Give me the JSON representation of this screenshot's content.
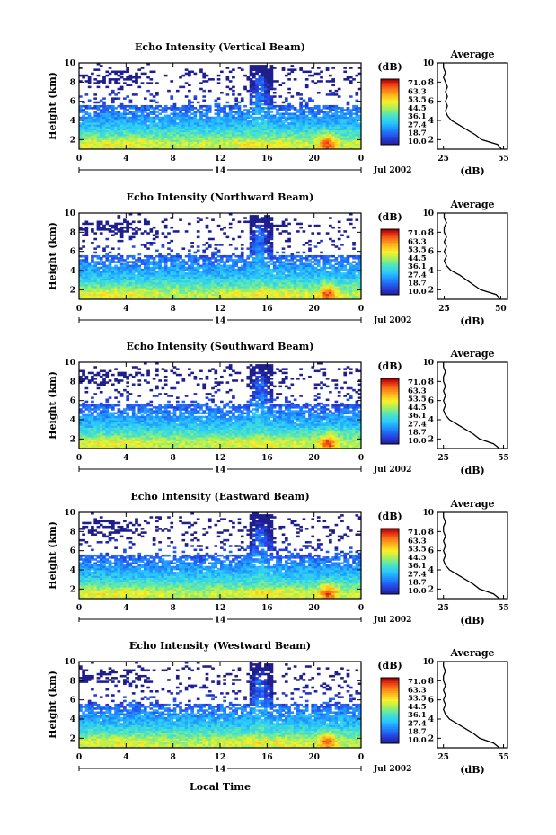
{
  "figure": {
    "xlabel_bottom": "Local Time",
    "date_label": "Jul 2002",
    "date_tick_label": "14"
  },
  "chart_data": [
    {
      "type": "heatmap",
      "title": "Echo Intensity (Vertical Beam)",
      "xlabel": "",
      "ylabel": "Height (km)",
      "x_ticks": [
        "0",
        "4",
        "8",
        "12",
        "16",
        "20",
        "0"
      ],
      "y_ticks": [
        "2",
        "4",
        "6",
        "8",
        "10"
      ],
      "xlim": [
        0,
        24
      ],
      "ylim": [
        1,
        10
      ],
      "colorbar": {
        "unit": "(dB)",
        "ticks": [
          "71.0",
          "63.3",
          "53.5",
          "44.5",
          "36.1",
          "27.4",
          "18.7",
          "10.0"
        ],
        "range": [
          10,
          71
        ]
      },
      "average_profile": {
        "title": "Average",
        "xlabel": "(dB)",
        "x_ticks": [
          "25",
          "55"
        ],
        "xlim": [
          22,
          57
        ],
        "y_ticks": [
          "2",
          "4",
          "6",
          "8",
          "10"
        ],
        "heights": [
          1.0,
          1.5,
          2.0,
          2.5,
          3.0,
          3.5,
          4.0,
          4.5,
          5.0,
          5.5,
          6.0,
          6.5,
          7.0,
          7.5,
          8.0,
          8.5,
          9.0,
          9.5,
          10.0
        ],
        "values": [
          54,
          52,
          44,
          41,
          37,
          33,
          29,
          27,
          26,
          27,
          26,
          27,
          26,
          27,
          26,
          25,
          26,
          25,
          25
        ]
      }
    },
    {
      "type": "heatmap",
      "title": "Echo Intensity (Northward Beam)",
      "xlabel": "",
      "ylabel": "Height (km)",
      "x_ticks": [
        "0",
        "4",
        "8",
        "12",
        "16",
        "20",
        "0"
      ],
      "y_ticks": [
        "2",
        "4",
        "6",
        "8",
        "10"
      ],
      "xlim": [
        0,
        24
      ],
      "ylim": [
        1,
        10
      ],
      "colorbar": {
        "unit": "(dB)",
        "ticks": [
          "71.0",
          "63.3",
          "53.5",
          "44.5",
          "36.1",
          "27.4",
          "18.7",
          "10.0"
        ],
        "range": [
          10,
          71
        ]
      },
      "average_profile": {
        "title": "Average",
        "xlabel": "(dB)",
        "x_ticks": [
          "25",
          "50"
        ],
        "xlim": [
          22,
          53
        ],
        "y_ticks": [
          "2",
          "4",
          "6",
          "8",
          "10"
        ],
        "heights": [
          1.0,
          1.5,
          2.0,
          2.5,
          3.0,
          3.5,
          4.0,
          4.5,
          5.0,
          5.5,
          6.0,
          6.5,
          7.0,
          7.5,
          8.0,
          8.5,
          9.0,
          9.5,
          10.0
        ],
        "values": [
          50,
          48,
          41,
          38,
          35,
          32,
          28,
          26,
          25,
          26,
          25,
          26,
          25,
          26,
          25,
          25,
          26,
          25,
          25
        ]
      }
    },
    {
      "type": "heatmap",
      "title": "Echo Intensity (Southward Beam)",
      "xlabel": "",
      "ylabel": "Height (km)",
      "x_ticks": [
        "0",
        "4",
        "8",
        "12",
        "16",
        "20",
        "0"
      ],
      "y_ticks": [
        "2",
        "4",
        "6",
        "8",
        "10"
      ],
      "xlim": [
        0,
        24
      ],
      "ylim": [
        1,
        10
      ],
      "colorbar": {
        "unit": "(dB)",
        "ticks": [
          "71.0",
          "63.3",
          "53.5",
          "44.5",
          "36.1",
          "27.4",
          "18.7",
          "10.0"
        ],
        "range": [
          10,
          71
        ]
      },
      "average_profile": {
        "title": "Average",
        "xlabel": "(dB)",
        "x_ticks": [
          "25",
          "55"
        ],
        "xlim": [
          22,
          57
        ],
        "y_ticks": [
          "2",
          "4",
          "6",
          "8",
          "10"
        ],
        "heights": [
          1.0,
          1.5,
          2.0,
          2.5,
          3.0,
          3.5,
          4.0,
          4.5,
          5.0,
          5.5,
          6.0,
          6.5,
          7.0,
          7.5,
          8.0,
          8.5,
          9.0,
          9.5,
          10.0
        ],
        "values": [
          53,
          50,
          43,
          40,
          36,
          32,
          28,
          26,
          25,
          26,
          25,
          26,
          25,
          26,
          25,
          25,
          26,
          25,
          25
        ]
      }
    },
    {
      "type": "heatmap",
      "title": "Echo Intensity (Eastward Beam)",
      "xlabel": "",
      "ylabel": "Height (km)",
      "x_ticks": [
        "0",
        "4",
        "8",
        "12",
        "16",
        "20",
        "0"
      ],
      "y_ticks": [
        "2",
        "4",
        "6",
        "8",
        "10"
      ],
      "xlim": [
        0,
        24
      ],
      "ylim": [
        1,
        10
      ],
      "colorbar": {
        "unit": "(dB)",
        "ticks": [
          "71.0",
          "63.3",
          "53.5",
          "44.5",
          "36.1",
          "27.4",
          "18.7",
          "10.0"
        ],
        "range": [
          10,
          71
        ]
      },
      "average_profile": {
        "title": "Average",
        "xlabel": "(dB)",
        "x_ticks": [
          "25",
          "55"
        ],
        "xlim": [
          22,
          57
        ],
        "y_ticks": [
          "2",
          "4",
          "6",
          "8",
          "10"
        ],
        "heights": [
          1.0,
          1.5,
          2.0,
          2.5,
          3.0,
          3.5,
          4.0,
          4.5,
          5.0,
          5.5,
          6.0,
          6.5,
          7.0,
          7.5,
          8.0,
          8.5,
          9.0,
          9.5,
          10.0
        ],
        "values": [
          53,
          50,
          43,
          40,
          36,
          32,
          28,
          26,
          25,
          26,
          25,
          26,
          25,
          26,
          25,
          25,
          26,
          25,
          25
        ]
      }
    },
    {
      "type": "heatmap",
      "title": "Echo Intensity (Westward Beam)",
      "xlabel": "Local Time",
      "ylabel": "Height (km)",
      "x_ticks": [
        "0",
        "4",
        "8",
        "12",
        "16",
        "20",
        "0"
      ],
      "y_ticks": [
        "2",
        "4",
        "6",
        "8",
        "10"
      ],
      "xlim": [
        0,
        24
      ],
      "ylim": [
        1,
        10
      ],
      "colorbar": {
        "unit": "(dB)",
        "ticks": [
          "71.0",
          "63.3",
          "53.5",
          "44.5",
          "36.1",
          "27.4",
          "18.7",
          "10.0"
        ],
        "range": [
          10,
          71
        ]
      },
      "average_profile": {
        "title": "Average",
        "xlabel": "(dB)",
        "x_ticks": [
          "25",
          "55"
        ],
        "xlim": [
          22,
          57
        ],
        "y_ticks": [
          "2",
          "4",
          "6",
          "8",
          "10"
        ],
        "heights": [
          1.0,
          1.5,
          2.0,
          2.5,
          3.0,
          3.5,
          4.0,
          4.5,
          5.0,
          5.5,
          6.0,
          6.5,
          7.0,
          7.5,
          8.0,
          8.5,
          9.0,
          9.5,
          10.0
        ],
        "values": [
          53,
          50,
          43,
          40,
          36,
          32,
          28,
          26,
          25,
          26,
          25,
          26,
          25,
          26,
          25,
          25,
          26,
          25,
          25
        ]
      }
    }
  ]
}
